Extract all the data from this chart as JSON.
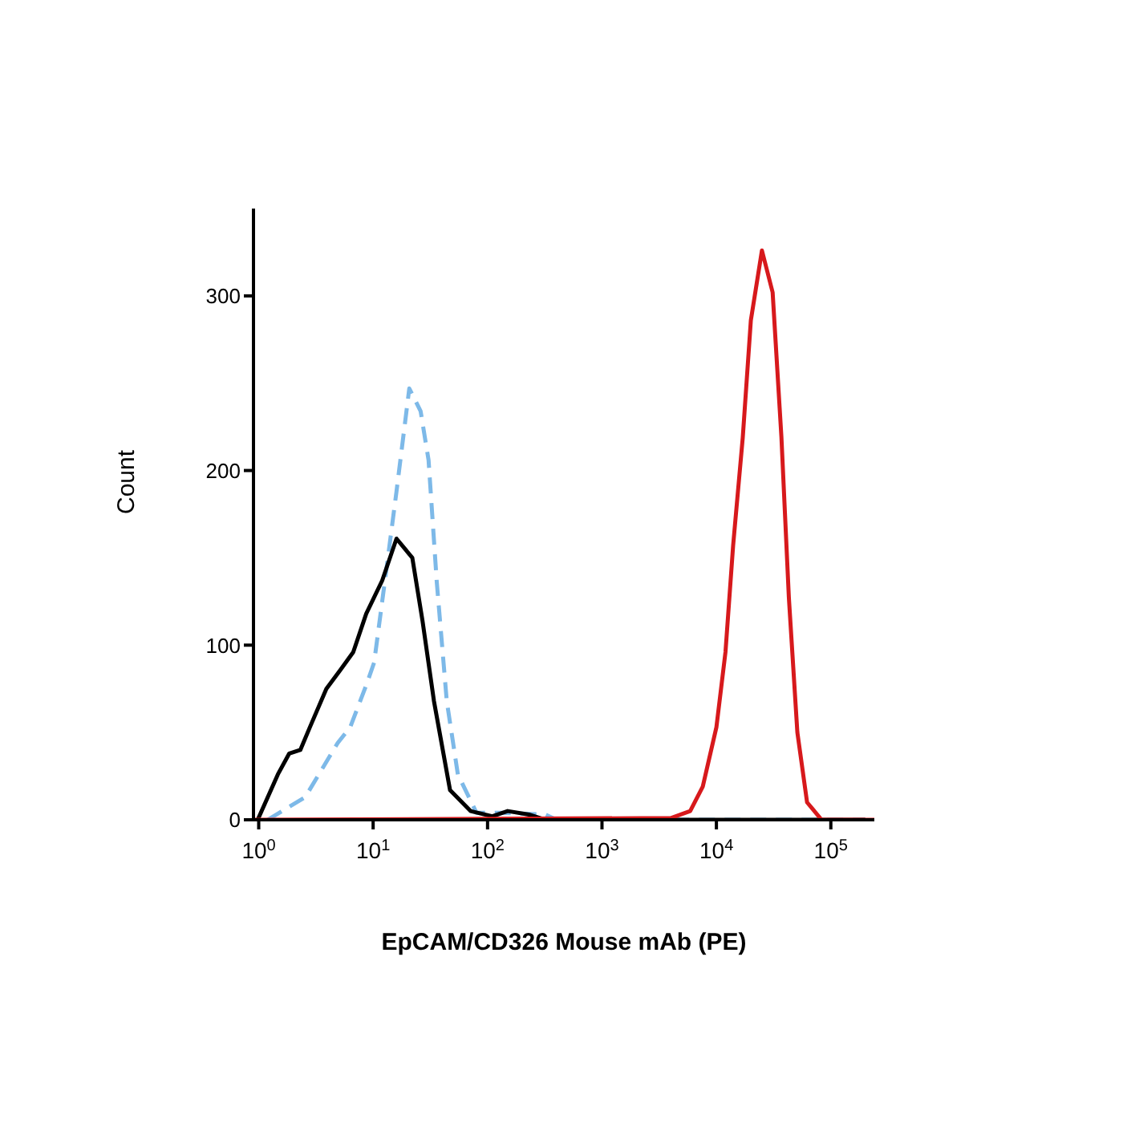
{
  "chart_data": {
    "type": "line",
    "xlabel": "EpCAM/CD326 Mouse mAb (PE)",
    "ylabel": "Count",
    "log": "x",
    "marker": "none",
    "xlim": [
      0.9,
      240000
    ],
    "xticks": [
      {
        "value": 1,
        "label": "10$^{0}$"
      },
      {
        "value": 10,
        "label": "10$^{1}$"
      },
      {
        "value": 100,
        "label": "10$^{2}$"
      },
      {
        "value": 1000,
        "label": "10$^{3}$"
      },
      {
        "value": 10000,
        "label": "10$^{4}$"
      },
      {
        "value": 100000,
        "label": "10$^{5}$"
      }
    ],
    "ylim": [
      0,
      350
    ],
    "yticks": [
      0,
      100,
      200,
      300
    ],
    "series": [
      {
        "color": "#7db9e8",
        "line_style": "dashed",
        "x": [
          1.2,
          2.55,
          4.9,
          6.3,
          8.7,
          10.2,
          12.8,
          16,
          20.7,
          26,
          30.5,
          36,
          44,
          55,
          80,
          134,
          320,
          400,
          200000
        ],
        "values": [
          0,
          13,
          44,
          53,
          77,
          90,
          139,
          188,
          247,
          234,
          206,
          136,
          68,
          26,
          4,
          4,
          3,
          0,
          0
        ]
      },
      {
        "color": "#000000",
        "line_style": "solid",
        "x": [
          0.98,
          1.47,
          1.85,
          2.31,
          2.8,
          3.9,
          5.2,
          6.7,
          8.7,
          12,
          16,
          22,
          27,
          34,
          47,
          71,
          110,
          150,
          230,
          320,
          200000
        ],
        "values": [
          0,
          26,
          38,
          40,
          53,
          75,
          86,
          96,
          118,
          137,
          161,
          150,
          114,
          68,
          17,
          5,
          2,
          5,
          3,
          0,
          0
        ]
      },
      {
        "color": "#d7191c",
        "line_style": "solid",
        "x": [
          0.9,
          4000,
          5900,
          7600,
          10000,
          12000,
          14000,
          17000,
          20000,
          25000,
          31000,
          37000,
          43000,
          51000,
          62000,
          83000,
          240000
        ],
        "values": [
          0,
          1,
          5,
          19,
          53,
          96,
          157,
          219,
          286,
          326,
          302,
          219,
          127,
          50,
          10,
          0,
          0
        ]
      }
    ]
  }
}
